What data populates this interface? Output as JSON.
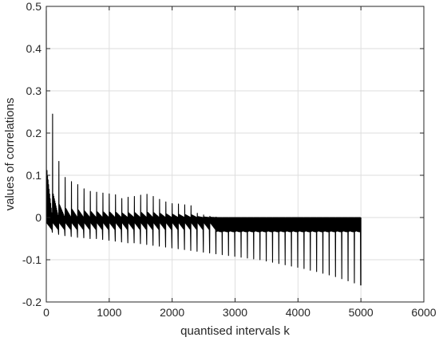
{
  "chart_data": {
    "type": "line",
    "title": "",
    "xlabel": "quantised intervals k",
    "ylabel": "values of correlations",
    "xlim": [
      0,
      6000
    ],
    "ylim": [
      -0.2,
      0.5
    ],
    "x_ticks": [
      0,
      1000,
      2000,
      3000,
      4000,
      5000,
      6000
    ],
    "y_ticks": [
      -0.2,
      -0.1,
      0,
      0.1,
      0.2,
      0.3,
      0.4,
      0.5
    ],
    "x_tick_labels": [
      "0",
      "1000",
      "2000",
      "3000",
      "4000",
      "5000",
      "6000"
    ],
    "y_tick_labels": [
      "-0.2",
      "-0.1",
      "0",
      "0.1",
      "0.2",
      "0.3",
      "0.4",
      "0.5"
    ],
    "grid": true,
    "series_color": "#000000",
    "grid_color": "#dedede",
    "axes_color": "#262626",
    "period": 100,
    "x_end": 5000,
    "series": [
      {
        "description_points": "positive peak / negative trough per 100-sample period",
        "peaks": [
          [
            0,
            0.49
          ],
          [
            100,
            0.245
          ],
          [
            200,
            0.133
          ],
          [
            300,
            0.095
          ],
          [
            400,
            0.085
          ],
          [
            500,
            0.078
          ],
          [
            600,
            0.068
          ],
          [
            700,
            0.062
          ],
          [
            800,
            0.06
          ],
          [
            900,
            0.058
          ],
          [
            1000,
            0.056
          ],
          [
            1100,
            0.054
          ],
          [
            1200,
            0.045
          ],
          [
            1300,
            0.048
          ],
          [
            1400,
            0.05
          ],
          [
            1500,
            0.053
          ],
          [
            1600,
            0.055
          ],
          [
            1700,
            0.05
          ],
          [
            1800,
            0.043
          ],
          [
            1900,
            0.037
          ],
          [
            2000,
            0.033
          ],
          [
            2100,
            0.032
          ],
          [
            2200,
            0.03
          ],
          [
            2300,
            0.028
          ],
          [
            2400,
            0.01
          ],
          [
            2500,
            0.006
          ],
          [
            2600,
            0.003
          ],
          [
            2700,
            0.001
          ],
          [
            2800,
            0.0
          ],
          [
            2900,
            0.0
          ]
        ],
        "troughs": [
          [
            0,
            -0.03
          ],
          [
            100,
            -0.035
          ],
          [
            200,
            -0.04
          ],
          [
            300,
            -0.043
          ],
          [
            400,
            -0.045
          ],
          [
            500,
            -0.047
          ],
          [
            600,
            -0.048
          ],
          [
            700,
            -0.05
          ],
          [
            800,
            -0.05
          ],
          [
            900,
            -0.052
          ],
          [
            1000,
            -0.054
          ],
          [
            1100,
            -0.056
          ],
          [
            1200,
            -0.058
          ],
          [
            1300,
            -0.06
          ],
          [
            1400,
            -0.06
          ],
          [
            1500,
            -0.062
          ],
          [
            1600,
            -0.064
          ],
          [
            1700,
            -0.066
          ],
          [
            1800,
            -0.068
          ],
          [
            1900,
            -0.07
          ],
          [
            2000,
            -0.072
          ],
          [
            2100,
            -0.074
          ],
          [
            2200,
            -0.076
          ],
          [
            2300,
            -0.078
          ],
          [
            2400,
            -0.08
          ],
          [
            2500,
            -0.082
          ],
          [
            2600,
            -0.084
          ],
          [
            2700,
            -0.086
          ],
          [
            2800,
            -0.088
          ],
          [
            2900,
            -0.09
          ],
          [
            3000,
            -0.092
          ],
          [
            3100,
            -0.094
          ],
          [
            3200,
            -0.096
          ],
          [
            3300,
            -0.098
          ],
          [
            3400,
            -0.1
          ],
          [
            3500,
            -0.103
          ],
          [
            3600,
            -0.106
          ],
          [
            3700,
            -0.109
          ],
          [
            3800,
            -0.112
          ],
          [
            3900,
            -0.115
          ],
          [
            4000,
            -0.118
          ],
          [
            4100,
            -0.121
          ],
          [
            4200,
            -0.125
          ],
          [
            4300,
            -0.128
          ],
          [
            4400,
            -0.132
          ],
          [
            4500,
            -0.136
          ],
          [
            4600,
            -0.14
          ],
          [
            4700,
            -0.145
          ],
          [
            4800,
            -0.15
          ],
          [
            4900,
            -0.155
          ],
          [
            5000,
            -0.16
          ]
        ],
        "dense_band": {
          "x_from": 2700,
          "x_to": 5000,
          "y_low": -0.03,
          "y_high": 0.0
        }
      }
    ]
  }
}
